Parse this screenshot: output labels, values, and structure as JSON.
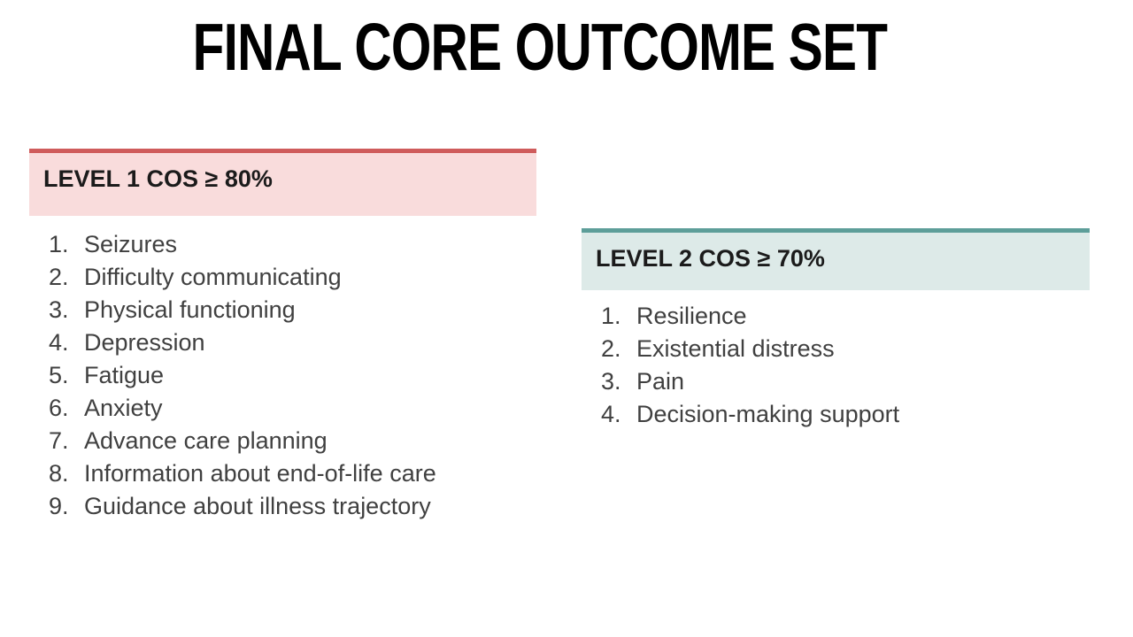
{
  "slide": {
    "title": "FINAL CORE OUTCOME SET"
  },
  "panels": [
    {
      "header": "LEVEL 1 COS ≥ 80%",
      "accent_color": "#cf5b5b",
      "background_color": "#f9dcdc",
      "items": [
        "Seizures",
        "Difficulty communicating",
        "Physical functioning",
        "Depression",
        "Fatigue",
        "Anxiety",
        "Advance care planning",
        "Information about end-of-life care",
        "Guidance about illness trajectory"
      ]
    },
    {
      "header": "LEVEL 2 COS ≥ 70%",
      "accent_color": "#5d9e99",
      "background_color": "#ddeae8",
      "items": [
        "Resilience",
        "Existential distress",
        "Pain",
        "Decision-making support"
      ]
    }
  ]
}
